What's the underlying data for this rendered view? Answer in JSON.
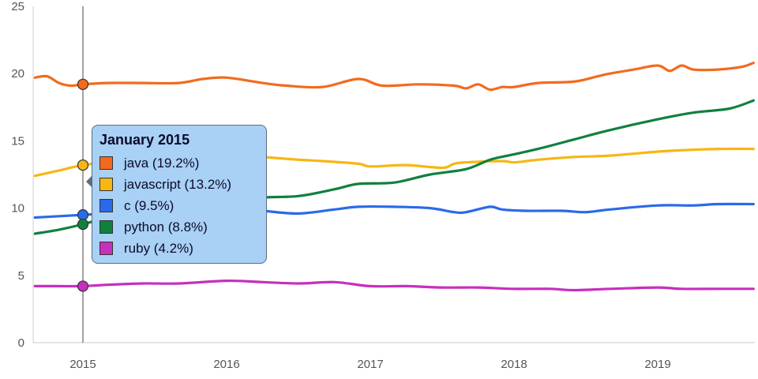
{
  "chart_data": {
    "type": "line",
    "ylim": [
      0,
      25
    ],
    "y_ticks": [
      "0",
      "5",
      "10",
      "15",
      "20",
      "25"
    ],
    "x_ticks": [
      "2015",
      "2016",
      "2017",
      "2018",
      "2019"
    ],
    "x_tick_years": [
      2015,
      2016,
      2017,
      2018,
      2019
    ],
    "xlim": [
      "2014-09",
      "2019-09"
    ],
    "grid": false,
    "hover": {
      "date": "2015-01",
      "title": "January 2015",
      "items": [
        {
          "label": "java (19.2%)",
          "color": "#f26b1d"
        },
        {
          "label": "javascript (13.2%)",
          "color": "#f7b614"
        },
        {
          "label": "c (9.5%)",
          "color": "#2a6ae8"
        },
        {
          "label": "python (8.8%)",
          "color": "#11803f"
        },
        {
          "label": "ruby (4.2%)",
          "color": "#c72fbd"
        }
      ]
    },
    "series": [
      {
        "name": "java",
        "color": "#f26b1d",
        "points": [
          [
            "2014-09",
            19.7
          ],
          [
            "2014-10",
            19.8
          ],
          [
            "2014-11",
            19.3
          ],
          [
            "2014-12",
            19.1
          ],
          [
            "2015-01",
            19.2
          ],
          [
            "2015-03",
            19.3
          ],
          [
            "2015-06",
            19.3
          ],
          [
            "2015-09",
            19.3
          ],
          [
            "2015-11",
            19.6
          ],
          [
            "2016-01",
            19.7
          ],
          [
            "2016-04",
            19.3
          ],
          [
            "2016-06",
            19.1
          ],
          [
            "2016-09",
            19.0
          ],
          [
            "2016-12",
            19.6
          ],
          [
            "2017-02",
            19.1
          ],
          [
            "2017-05",
            19.2
          ],
          [
            "2017-08",
            19.1
          ],
          [
            "2017-09",
            18.9
          ],
          [
            "2017-10",
            19.2
          ],
          [
            "2017-11",
            18.8
          ],
          [
            "2017-12",
            19.0
          ],
          [
            "2018-01",
            19.0
          ],
          [
            "2018-03",
            19.3
          ],
          [
            "2018-06",
            19.4
          ],
          [
            "2018-08",
            19.8
          ],
          [
            "2018-09",
            20.0
          ],
          [
            "2018-11",
            20.3
          ],
          [
            "2019-01",
            20.6
          ],
          [
            "2019-02",
            20.2
          ],
          [
            "2019-03",
            20.6
          ],
          [
            "2019-04",
            20.3
          ],
          [
            "2019-06",
            20.3
          ],
          [
            "2019-08",
            20.5
          ],
          [
            "2019-09",
            20.8
          ]
        ]
      },
      {
        "name": "javascript",
        "color": "#f7b614",
        "points": [
          [
            "2014-09",
            12.4
          ],
          [
            "2014-11",
            12.8
          ],
          [
            "2015-01",
            13.2
          ],
          [
            "2015-03",
            13.4
          ],
          [
            "2015-06",
            13.6
          ],
          [
            "2015-09",
            13.8
          ],
          [
            "2016-01",
            14.0
          ],
          [
            "2016-04",
            13.8
          ],
          [
            "2016-07",
            13.6
          ],
          [
            "2016-09",
            13.5
          ],
          [
            "2016-12",
            13.3
          ],
          [
            "2017-01",
            13.1
          ],
          [
            "2017-04",
            13.2
          ],
          [
            "2017-07",
            13.0
          ],
          [
            "2017-08",
            13.3
          ],
          [
            "2017-09",
            13.4
          ],
          [
            "2017-12",
            13.5
          ],
          [
            "2018-01",
            13.4
          ],
          [
            "2018-03",
            13.6
          ],
          [
            "2018-06",
            13.8
          ],
          [
            "2018-09",
            13.9
          ],
          [
            "2019-01",
            14.2
          ],
          [
            "2019-03",
            14.3
          ],
          [
            "2019-06",
            14.4
          ],
          [
            "2019-09",
            14.4
          ]
        ]
      },
      {
        "name": "c",
        "color": "#2a6ae8",
        "points": [
          [
            "2014-09",
            9.3
          ],
          [
            "2014-11",
            9.4
          ],
          [
            "2015-01",
            9.5
          ],
          [
            "2015-03",
            9.6
          ],
          [
            "2015-06",
            9.7
          ],
          [
            "2015-09",
            9.8
          ],
          [
            "2016-01",
            10.0
          ],
          [
            "2016-04",
            9.8
          ],
          [
            "2016-07",
            9.6
          ],
          [
            "2016-10",
            9.9
          ],
          [
            "2016-12",
            10.1
          ],
          [
            "2017-03",
            10.1
          ],
          [
            "2017-06",
            10.0
          ],
          [
            "2017-08",
            9.7
          ],
          [
            "2017-09",
            9.7
          ],
          [
            "2017-11",
            10.1
          ],
          [
            "2017-12",
            9.9
          ],
          [
            "2018-02",
            9.8
          ],
          [
            "2018-05",
            9.8
          ],
          [
            "2018-07",
            9.7
          ],
          [
            "2018-09",
            9.9
          ],
          [
            "2019-01",
            10.2
          ],
          [
            "2019-04",
            10.2
          ],
          [
            "2019-06",
            10.3
          ],
          [
            "2019-09",
            10.3
          ]
        ]
      },
      {
        "name": "python",
        "color": "#11803f",
        "points": [
          [
            "2014-09",
            8.1
          ],
          [
            "2014-11",
            8.4
          ],
          [
            "2015-01",
            8.8
          ],
          [
            "2015-03",
            9.3
          ],
          [
            "2015-06",
            9.8
          ],
          [
            "2015-09",
            10.2
          ],
          [
            "2016-01",
            10.6
          ],
          [
            "2016-04",
            10.8
          ],
          [
            "2016-07",
            10.9
          ],
          [
            "2016-10",
            11.4
          ],
          [
            "2016-12",
            11.8
          ],
          [
            "2017-03",
            11.9
          ],
          [
            "2017-06",
            12.5
          ],
          [
            "2017-09",
            12.9
          ],
          [
            "2017-11",
            13.6
          ],
          [
            "2018-01",
            14.0
          ],
          [
            "2018-03",
            14.4
          ],
          [
            "2018-06",
            15.1
          ],
          [
            "2018-09",
            15.8
          ],
          [
            "2019-01",
            16.6
          ],
          [
            "2019-04",
            17.1
          ],
          [
            "2019-07",
            17.4
          ],
          [
            "2019-09",
            18.0
          ]
        ]
      },
      {
        "name": "ruby",
        "color": "#c72fbd",
        "points": [
          [
            "2014-09",
            4.2
          ],
          [
            "2014-11",
            4.2
          ],
          [
            "2015-01",
            4.2
          ],
          [
            "2015-03",
            4.3
          ],
          [
            "2015-06",
            4.4
          ],
          [
            "2015-09",
            4.4
          ],
          [
            "2016-01",
            4.6
          ],
          [
            "2016-04",
            4.5
          ],
          [
            "2016-07",
            4.4
          ],
          [
            "2016-10",
            4.5
          ],
          [
            "2017-01",
            4.2
          ],
          [
            "2017-04",
            4.2
          ],
          [
            "2017-07",
            4.1
          ],
          [
            "2017-10",
            4.1
          ],
          [
            "2018-01",
            4.0
          ],
          [
            "2018-04",
            4.0
          ],
          [
            "2018-06",
            3.9
          ],
          [
            "2018-09",
            4.0
          ],
          [
            "2019-01",
            4.1
          ],
          [
            "2019-03",
            4.0
          ],
          [
            "2019-06",
            4.0
          ],
          [
            "2019-09",
            4.0
          ]
        ]
      }
    ]
  }
}
